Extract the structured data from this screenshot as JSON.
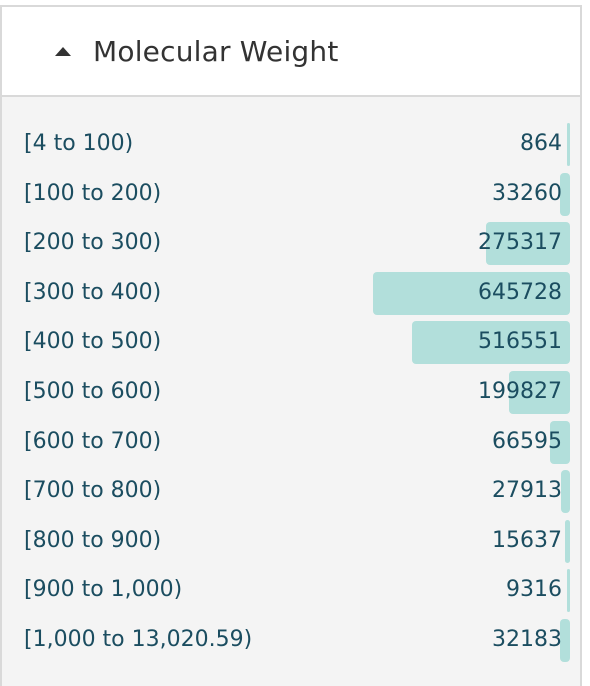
{
  "facet": {
    "title": "Molecular Weight",
    "expanded": true,
    "bar_color": "#b2dfdb",
    "text_color": "#1b4d60",
    "max_count": 645728,
    "items": [
      {
        "label": "[4 to 100)",
        "count": 864
      },
      {
        "label": "[100 to 200)",
        "count": 33260
      },
      {
        "label": "[200 to 300)",
        "count": 275317
      },
      {
        "label": "[300 to 400)",
        "count": 645728
      },
      {
        "label": "[400 to 500)",
        "count": 516551
      },
      {
        "label": "[500 to 600)",
        "count": 199827
      },
      {
        "label": "[600 to 700)",
        "count": 66595
      },
      {
        "label": "[700 to 800)",
        "count": 27913
      },
      {
        "label": "[800 to 900)",
        "count": 15637
      },
      {
        "label": "[900 to 1,000)",
        "count": 9316
      },
      {
        "label": "[1,000 to 13,020.59)",
        "count": 32183
      }
    ]
  }
}
